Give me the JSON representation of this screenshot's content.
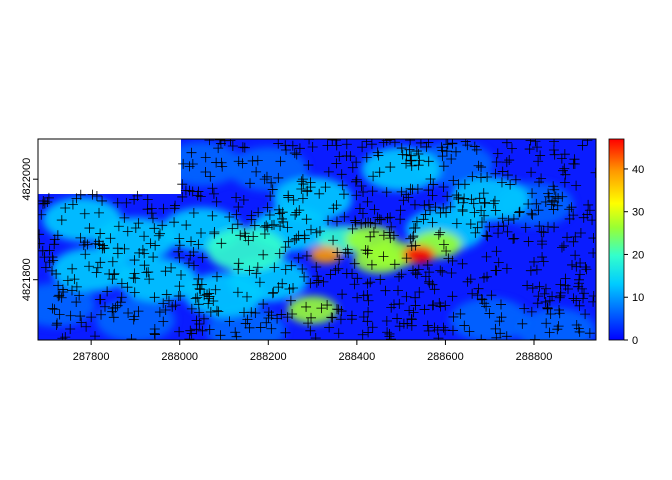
{
  "chart_data": {
    "type": "heatmap",
    "title": "",
    "xlabel": "",
    "ylabel": "",
    "xlim": [
      287680,
      288940
    ],
    "ylim": [
      4821680,
      4822080
    ],
    "x_ticks": [
      287800,
      288000,
      288200,
      288400,
      288600,
      288800
    ],
    "y_ticks": [
      4821800,
      4822000
    ],
    "colorbar": {
      "range": [
        0,
        47
      ],
      "ticks": [
        0,
        10,
        20,
        30,
        40
      ],
      "colors": [
        "#0000ff",
        "#0066ff",
        "#00ccff",
        "#33ffcc",
        "#99ff33",
        "#ffff00",
        "#ff9900",
        "#ff0000"
      ]
    },
    "hotspots": [
      {
        "x": 287780,
        "y": 4821920,
        "value": 14
      },
      {
        "x": 287900,
        "y": 4821880,
        "value": 16
      },
      {
        "x": 288050,
        "y": 4821900,
        "value": 15
      },
      {
        "x": 288150,
        "y": 4821860,
        "value": 17
      },
      {
        "x": 288200,
        "y": 4821800,
        "value": 14
      },
      {
        "x": 287950,
        "y": 4821800,
        "value": 13
      },
      {
        "x": 287800,
        "y": 4821820,
        "value": 12
      },
      {
        "x": 288100,
        "y": 4821770,
        "value": 12
      },
      {
        "x": 288250,
        "y": 4821900,
        "value": 13
      },
      {
        "x": 288300,
        "y": 4821740,
        "value": 28
      },
      {
        "x": 288370,
        "y": 4821880,
        "value": 22
      },
      {
        "x": 288430,
        "y": 4821880,
        "value": 30
      },
      {
        "x": 288480,
        "y": 4821850,
        "value": 25
      },
      {
        "x": 288540,
        "y": 4821850,
        "value": 47
      },
      {
        "x": 288580,
        "y": 4821870,
        "value": 28
      },
      {
        "x": 288330,
        "y": 4821850,
        "value": 38
      },
      {
        "x": 288450,
        "y": 4821840,
        "value": 24
      },
      {
        "x": 288600,
        "y": 4821900,
        "value": 15
      },
      {
        "x": 288700,
        "y": 4821960,
        "value": 12
      },
      {
        "x": 288800,
        "y": 4821950,
        "value": 10
      },
      {
        "x": 288300,
        "y": 4821960,
        "value": 11
      },
      {
        "x": 288200,
        "y": 4822020,
        "value": 9
      },
      {
        "x": 288050,
        "y": 4822030,
        "value": 9
      },
      {
        "x": 288700,
        "y": 4821720,
        "value": 6
      },
      {
        "x": 288850,
        "y": 4821700,
        "value": 5
      },
      {
        "x": 288150,
        "y": 4821700,
        "value": 8
      },
      {
        "x": 287900,
        "y": 4821720,
        "value": 9
      },
      {
        "x": 287720,
        "y": 4821750,
        "value": 8
      },
      {
        "x": 288500,
        "y": 4822020,
        "value": 11
      },
      {
        "x": 288620,
        "y": 4822030,
        "value": 9
      }
    ]
  }
}
